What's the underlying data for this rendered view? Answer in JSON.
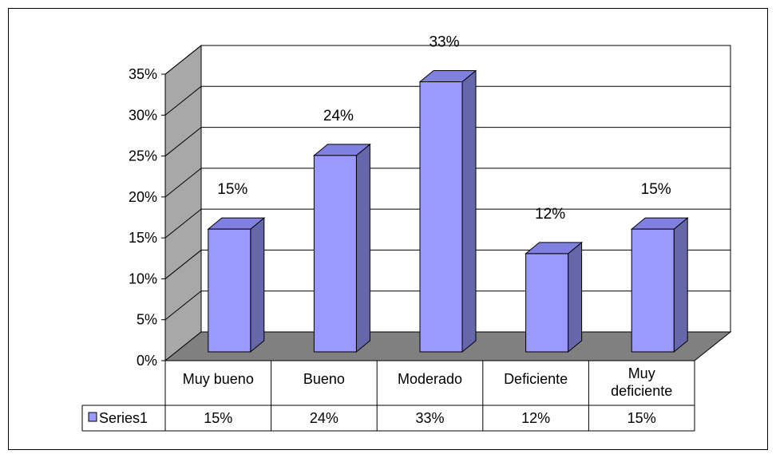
{
  "chart_data": {
    "type": "bar",
    "categories": [
      "Muy bueno",
      "Bueno",
      "Moderado",
      "Deficiente",
      "Muy deficiente"
    ],
    "category_lines": [
      [
        "Muy bueno"
      ],
      [
        "Bueno"
      ],
      [
        "Moderado"
      ],
      [
        "Deficiente"
      ],
      [
        "Muy",
        "deficiente"
      ]
    ],
    "series": [
      {
        "name": "Series1",
        "values": [
          15,
          24,
          33,
          12,
          15
        ]
      }
    ],
    "data_labels": [
      "15%",
      "24%",
      "33%",
      "12%",
      "15%"
    ],
    "table_values": [
      "15%",
      "24%",
      "33%",
      "12%",
      "15%"
    ],
    "y_ticks": [
      "0%",
      "5%",
      "10%",
      "15%",
      "20%",
      "25%",
      "30%",
      "35%"
    ],
    "ylim": [
      0,
      35
    ],
    "grid": true,
    "three_d": true,
    "legend": "data-table",
    "colors": {
      "bar_front": "#9999ff",
      "bar_side": "#6666aa",
      "bar_top": "#8080e0",
      "back_wall": "#ffffff",
      "side_wall": "#a8a8a8",
      "floor": "#808080",
      "legend_key": "#9999ff"
    }
  }
}
